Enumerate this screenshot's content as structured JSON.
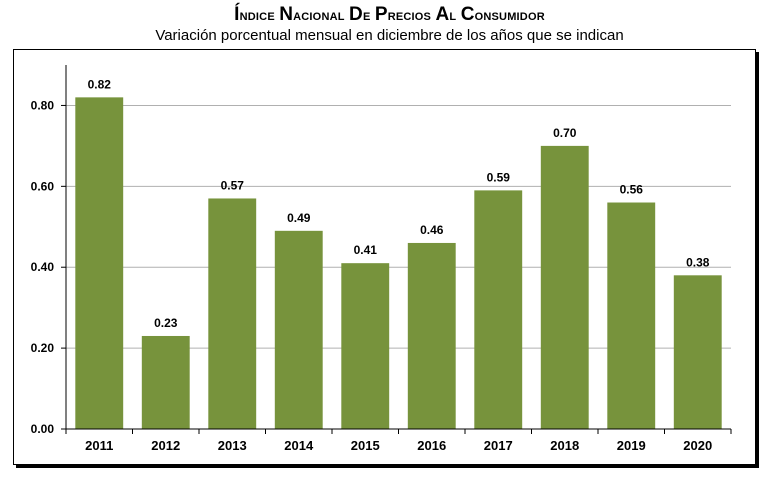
{
  "chart_data": {
    "type": "bar",
    "title": "Índice Nacional de Precios al Consumidor",
    "subtitle": "Variación porcentual mensual en diciembre de los años que se indican",
    "categories": [
      "2011",
      "2012",
      "2013",
      "2014",
      "2015",
      "2016",
      "2017",
      "2018",
      "2019",
      "2020"
    ],
    "values": [
      0.82,
      0.23,
      0.57,
      0.49,
      0.41,
      0.46,
      0.59,
      0.7,
      0.56,
      0.38
    ],
    "value_labels": [
      "0.82",
      "0.23",
      "0.57",
      "0.49",
      "0.41",
      "0.46",
      "0.59",
      "0.70",
      "0.56",
      "0.38"
    ],
    "yticks": [
      "0.00",
      "0.20",
      "0.40",
      "0.60",
      "0.80"
    ],
    "ylim": [
      0,
      0.9
    ],
    "grid": true,
    "bar_color": "#77933c",
    "grid_color": "#b0b0b0"
  }
}
